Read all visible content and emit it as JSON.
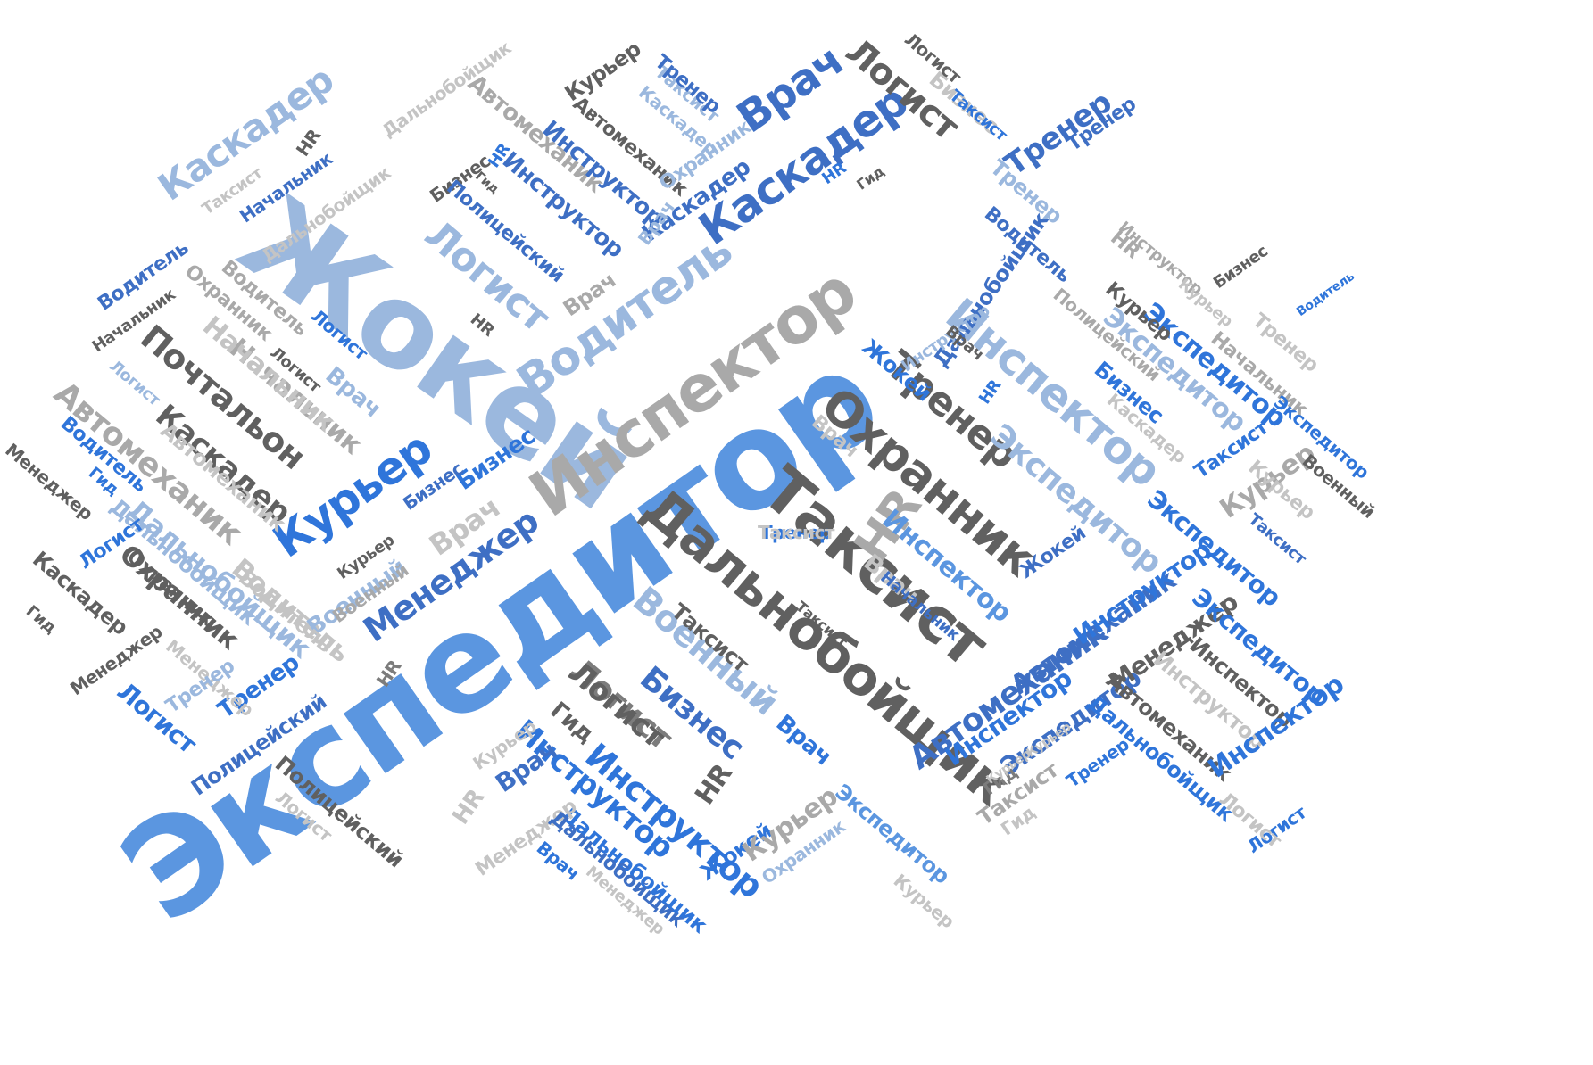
{
  "colors": {
    "c1": "#5B96E0",
    "c2": "#A9A9A9",
    "c3": "#606060",
    "c4": "#3E6FC4",
    "c5": "#9BB8DE",
    "c6": "#2F75DA",
    "c7": "#7C7C7C",
    "c8": "#C4C4C4"
  },
  "words": [
    {
      "text": "Экспедитор",
      "color": "c1"
    },
    {
      "text": "Жокей",
      "color": "c5"
    },
    {
      "text": "Инспектор",
      "color": "c2"
    },
    {
      "text": "Водитель",
      "color": "c5"
    },
    {
      "text": "Таксист",
      "color": "c3"
    },
    {
      "text": "Дальнобойщик",
      "color": "c3"
    },
    {
      "text": "Охранник",
      "color": "c3"
    },
    {
      "text": "HR",
      "color": "c2"
    },
    {
      "text": "Тренер",
      "color": "c3"
    },
    {
      "text": "Инспектор",
      "color": "c5"
    },
    {
      "text": "Каскадер",
      "color": "c4"
    },
    {
      "text": "Врач",
      "color": "c4"
    },
    {
      "text": "Каскадер",
      "color": "c5"
    },
    {
      "text": "Курьер",
      "color": "c6"
    },
    {
      "text": "Почтальон",
      "color": "c3"
    },
    {
      "text": "Каскадер",
      "color": "c3"
    },
    {
      "text": "Логист",
      "color": "c5"
    },
    {
      "text": "Логист",
      "color": "c3"
    },
    {
      "text": "Менеджер",
      "color": "c4"
    },
    {
      "text": "Автомеханик",
      "color": "c4"
    },
    {
      "text": "Военный",
      "color": "c5"
    },
    {
      "text": "Бизнес",
      "color": "c4"
    },
    {
      "text": "Логист",
      "color": "c7"
    },
    {
      "text": "Инструктор",
      "color": "c6"
    },
    {
      "text": "Экспедитор",
      "color": "c5"
    },
    {
      "text": "Тренер",
      "color": "c4"
    },
    {
      "text": "Автомеханик",
      "color": "c2"
    },
    {
      "text": "Начальник",
      "color": "c2"
    },
    {
      "text": "Охранник",
      "color": "c3"
    },
    {
      "text": "Дальнобойщик",
      "color": "c5"
    },
    {
      "text": "Водитель",
      "color": "c8"
    },
    {
      "text": "Экспедитор",
      "color": "c5"
    },
    {
      "text": "Инспектор",
      "color": "c1"
    },
    {
      "text": "Курьер",
      "color": "c2"
    },
    {
      "text": "Таксист",
      "color": "c3"
    },
    {
      "text": "Врач",
      "color": "c8"
    },
    {
      "text": "Жокей",
      "color": "c4"
    },
    {
      "text": "Автомеханик",
      "color": "c4"
    },
    {
      "text": "Инспектор",
      "color": "c6"
    },
    {
      "text": "Экспедитор",
      "color": "c4"
    },
    {
      "text": "Инструктор",
      "color": "c6"
    },
    {
      "text": "Менеджер",
      "color": "c3"
    },
    {
      "text": "Экспедитор",
      "color": "c6"
    },
    {
      "text": "Инспектор",
      "color": "c3"
    },
    {
      "text": "Автомеханик",
      "color": "c3"
    },
    {
      "text": "Инструктор",
      "color": "c8"
    },
    {
      "text": "Дальнобойщик",
      "color": "c6"
    },
    {
      "text": "Инспектор",
      "color": "c6"
    },
    {
      "text": "Экспедитор",
      "color": "c6"
    },
    {
      "text": "Курьер",
      "color": "c8"
    },
    {
      "text": "Экспедитор",
      "color": "c1"
    },
    {
      "text": "Таксист",
      "color": "c2"
    },
    {
      "text": "Тренер",
      "color": "c6"
    },
    {
      "text": "Гид",
      "color": "c7"
    },
    {
      "text": "Экспедитор",
      "color": "c6"
    },
    {
      "text": "Охранник",
      "color": "c5"
    },
    {
      "text": "Жокей",
      "color": "c6"
    },
    {
      "text": "Курьер",
      "color": "c2"
    },
    {
      "text": "Дальнобойщик",
      "color": "c6"
    },
    {
      "text": "Инструктор",
      "color": "c6"
    },
    {
      "text": "HR",
      "color": "c3"
    },
    {
      "text": "Врач",
      "color": "c6"
    },
    {
      "text": "Бизнес",
      "color": "c6"
    },
    {
      "text": "Военный",
      "color": "c5"
    },
    {
      "text": "Логист",
      "color": "c3"
    },
    {
      "text": "Гид",
      "color": "c3"
    },
    {
      "text": "Врач",
      "color": "c4"
    },
    {
      "text": "Менеджер",
      "color": "c8"
    },
    {
      "text": "Дальнобойщик",
      "color": "c4"
    },
    {
      "text": "Врач",
      "color": "c6"
    },
    {
      "text": "Менеджер",
      "color": "c8"
    },
    {
      "text": "HR",
      "color": "c8"
    },
    {
      "text": "Курьер",
      "color": "c8"
    },
    {
      "text": "HR",
      "color": "c7"
    },
    {
      "text": "Полицейский",
      "color": "c3"
    },
    {
      "text": "Логист",
      "color": "c8"
    },
    {
      "text": "Полицейский",
      "color": "c4"
    },
    {
      "text": "Тренер",
      "color": "c6"
    },
    {
      "text": "Логист",
      "color": "c6"
    },
    {
      "text": "Менеджер",
      "color": "c3"
    },
    {
      "text": "Менеджер",
      "color": "c8"
    },
    {
      "text": "Тренер",
      "color": "c5"
    },
    {
      "text": "Дальнобойщик",
      "color": "c5"
    },
    {
      "text": "Охранник",
      "color": "c3"
    },
    {
      "text": "Водитель",
      "color": "c8"
    },
    {
      "text": "Военный",
      "color": "c2"
    },
    {
      "text": "Курьер",
      "color": "c3"
    },
    {
      "text": "Бизнес",
      "color": "c4"
    },
    {
      "text": "Врач",
      "color": "c8"
    },
    {
      "text": "Каскадер",
      "color": "c3"
    },
    {
      "text": "Гид",
      "color": "c3"
    },
    {
      "text": "Менеджер",
      "color": "c3"
    },
    {
      "text": "Логист",
      "color": "c6"
    },
    {
      "text": "Гид",
      "color": "c6"
    },
    {
      "text": "Водитель",
      "color": "c6"
    },
    {
      "text": "Автомеханик",
      "color": "c8"
    },
    {
      "text": "Логист",
      "color": "c5"
    },
    {
      "text": "Начальник",
      "color": "c3"
    },
    {
      "text": "Водитель",
      "color": "c4"
    },
    {
      "text": "Охранник",
      "color": "c2"
    },
    {
      "text": "Водитель",
      "color": "c2"
    },
    {
      "text": "Начальник",
      "color": "c8"
    },
    {
      "text": "Логист",
      "color": "c6"
    },
    {
      "text": "Логист",
      "color": "c3"
    },
    {
      "text": "Врач",
      "color": "c5"
    },
    {
      "text": "HR",
      "color": "c3"
    },
    {
      "text": "Врач",
      "color": "c2"
    },
    {
      "text": "Дальнобойщик",
      "color": "c8"
    },
    {
      "text": "Таксист",
      "color": "c8"
    },
    {
      "text": "Начальник",
      "color": "c4"
    },
    {
      "text": "HR",
      "color": "c3"
    },
    {
      "text": "Каскадер",
      "color": "c5"
    },
    {
      "text": "Автомеханик",
      "color": "c2"
    },
    {
      "text": "Дальнобойщик",
      "color": "c8"
    },
    {
      "text": "Бизнес",
      "color": "c3"
    },
    {
      "text": "HR",
      "color": "c6"
    },
    {
      "text": "Гид",
      "color": "c3"
    },
    {
      "text": "Полицейский",
      "color": "c4"
    },
    {
      "text": "Инструктор",
      "color": "c4"
    },
    {
      "text": "Инструктор",
      "color": "c4"
    },
    {
      "text": "Автомеханик",
      "color": "c3"
    },
    {
      "text": "Курьер",
      "color": "c3"
    },
    {
      "text": "Таксист",
      "color": "c5"
    },
    {
      "text": "Тренер",
      "color": "c4"
    },
    {
      "text": "Каскадер",
      "color": "c4"
    },
    {
      "text": "Охранник",
      "color": "c5"
    },
    {
      "text": "Врач",
      "color": "c5"
    },
    {
      "text": "HR",
      "color": "c6"
    },
    {
      "text": "Гид",
      "color": "c3"
    },
    {
      "text": "Бизнес",
      "color": "c8"
    },
    {
      "text": "Логист",
      "color": "c3"
    },
    {
      "text": "Таксист",
      "color": "c6"
    },
    {
      "text": "Тренер",
      "color": "c5"
    },
    {
      "text": "Тренер",
      "color": "c4"
    },
    {
      "text": "Водитель",
      "color": "c4"
    },
    {
      "text": "Дальнобойщик",
      "color": "c4"
    },
    {
      "text": "Инструктор",
      "color": "c5"
    },
    {
      "text": "HR",
      "color": "c6"
    },
    {
      "text": "Жокей",
      "color": "c6"
    },
    {
      "text": "HR",
      "color": "c2"
    },
    {
      "text": "Инструктор",
      "color": "c2"
    },
    {
      "text": "Курьер",
      "color": "c3"
    },
    {
      "text": "Курьер",
      "color": "c8"
    },
    {
      "text": "Бизнес",
      "color": "c3"
    },
    {
      "text": "Водитель",
      "color": "c6"
    },
    {
      "text": "Бизнес",
      "color": "c6"
    },
    {
      "text": "Полицейский",
      "color": "c2"
    },
    {
      "text": "Каскадер",
      "color": "c8"
    },
    {
      "text": "Тренер",
      "color": "c8"
    },
    {
      "text": "Начальник",
      "color": "c2"
    },
    {
      "text": "Экспедитор",
      "color": "c6"
    },
    {
      "text": "Таксист",
      "color": "c6"
    },
    {
      "text": "Военный",
      "color": "c3"
    },
    {
      "text": "Таксист",
      "color": "c4"
    },
    {
      "text": "Логист",
      "color": "c6"
    },
    {
      "text": "Логист",
      "color": "c8"
    },
    {
      "text": "Курьер",
      "color": "c8"
    },
    {
      "text": "Начальник",
      "color": "c4"
    },
    {
      "text": "Таксист",
      "color": "c3"
    },
    {
      "text": "Врач",
      "color": "c3"
    },
    {
      "text": "Врач",
      "color": "c8"
    },
    {
      "text": "Курьер",
      "color": "c8"
    },
    {
      "text": "Курьер",
      "color": "c8"
    },
    {
      "text": "Гид",
      "color": "c8"
    },
    {
      "text": "Тренер",
      "color": "c6"
    },
    {
      "text": "Таксист",
      "color": "c8"
    }
  ]
}
